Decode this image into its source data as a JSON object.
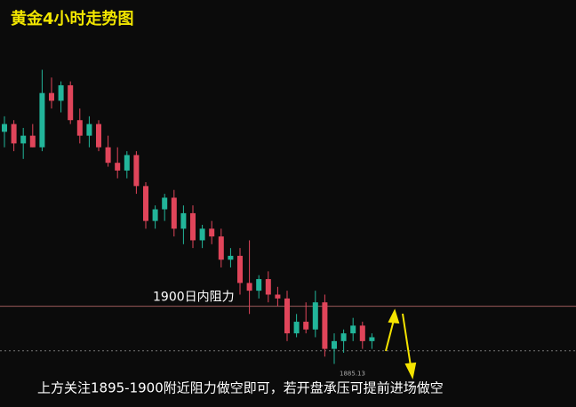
{
  "chart_data": {
    "type": "candlestick",
    "title": "黄金4小时走势图",
    "annotation": "上方关注1895-1900附近阻力做空即可，若开盘承压可提前进场做空",
    "up_color": "#22b59a",
    "down_color": "#e0455a",
    "ylim": [
      1874,
      1979
    ],
    "open": [
      1945,
      1947,
      1942,
      1944,
      1941,
      1955,
      1953,
      1957,
      1948,
      1944,
      1947,
      1941,
      1937,
      1935,
      1939,
      1931,
      1922,
      1925,
      1928,
      1920,
      1924,
      1917,
      1920,
      1918,
      1912,
      1913,
      1906,
      1904,
      1907,
      1903,
      1902,
      1893,
      1896,
      1894,
      1901,
      1889,
      1891,
      1893,
      1895,
      1891
    ],
    "high": [
      1949,
      1948,
      1946,
      1947,
      1961,
      1959,
      1958,
      1958,
      1951,
      1949,
      1948,
      1944,
      1941,
      1940,
      1940,
      1932,
      1926,
      1929,
      1930,
      1926,
      1926,
      1921,
      1922,
      1920,
      1915,
      1915,
      1917,
      1908,
      1909,
      1905,
      1904,
      1898,
      1901,
      1904,
      1903,
      1893,
      1894,
      1897,
      1896,
      1893
    ],
    "low": [
      1941,
      1940,
      1938,
      1941,
      1940,
      1951,
      1950,
      1947,
      1942,
      1941,
      1940,
      1936,
      1933,
      1933,
      1929,
      1920,
      1920,
      1922,
      1918,
      1916,
      1915,
      1915,
      1916,
      1910,
      1910,
      1903,
      1898,
      1902,
      1901,
      1900,
      1891,
      1892,
      1893,
      1892,
      1887,
      1885.13,
      1888,
      1891,
      1889,
      1889
    ],
    "close": [
      1947,
      1942,
      1944,
      1941,
      1955,
      1953,
      1957,
      1948,
      1944,
      1947,
      1941,
      1937,
      1935,
      1939,
      1931,
      1922,
      1925,
      1928,
      1920,
      1924,
      1917,
      1920,
      1918,
      1912,
      1913,
      1906,
      1904,
      1907,
      1903,
      1902,
      1893,
      1896,
      1894,
      1901,
      1889,
      1891,
      1893,
      1895,
      1891,
      1892
    ],
    "hline": {
      "value": 1900,
      "label": "1900日内阻力",
      "color": "#9a5a5a"
    },
    "dotted_line": 1888.5,
    "low_label": {
      "value": 1885.13,
      "label": "1885.13"
    }
  }
}
